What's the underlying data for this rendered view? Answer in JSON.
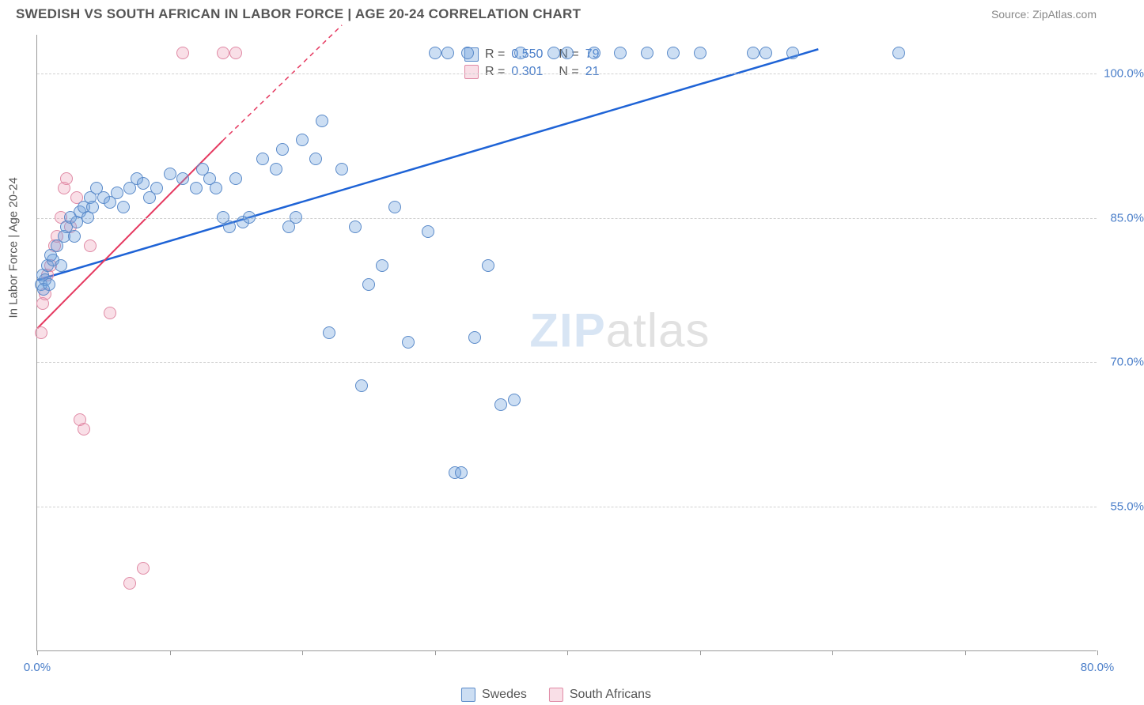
{
  "header": {
    "title": "SWEDISH VS SOUTH AFRICAN IN LABOR FORCE | AGE 20-24 CORRELATION CHART",
    "source": "Source: ZipAtlas.com"
  },
  "chart": {
    "type": "scatter",
    "y_axis_title": "In Labor Force | Age 20-24",
    "xlim": [
      0,
      80
    ],
    "ylim": [
      40,
      104
    ],
    "x_ticks": [
      0,
      10,
      20,
      30,
      40,
      50,
      60,
      70,
      80
    ],
    "x_tick_labels": {
      "0": "0.0%",
      "80": "80.0%"
    },
    "y_ticks": [
      55,
      70,
      85,
      100
    ],
    "y_tick_labels": {
      "55": "55.0%",
      "70": "70.0%",
      "85": "85.0%",
      "100": "100.0%"
    },
    "grid_color": "#d0d0d0",
    "background_color": "#ffffff",
    "axis_color": "#999999",
    "tick_label_color": "#4a7ec9",
    "series": {
      "swedes": {
        "label": "Swedes",
        "marker_fill": "rgba(110,160,220,0.35)",
        "marker_stroke": "#5a8ac9",
        "marker_size": 16,
        "trend_color": "#1e63d6",
        "trend_width": 2.5,
        "trend": {
          "x1": 0,
          "y1": 78.5,
          "x2": 59,
          "y2": 102.5
        },
        "R": "0.550",
        "N": "79",
        "points": [
          [
            0.3,
            78
          ],
          [
            0.4,
            79
          ],
          [
            0.6,
            78.5
          ],
          [
            0.8,
            80
          ],
          [
            0.5,
            77.5
          ],
          [
            0.9,
            78
          ],
          [
            1.2,
            80.5
          ],
          [
            1.0,
            81
          ],
          [
            1.5,
            82
          ],
          [
            1.8,
            80
          ],
          [
            2.0,
            83
          ],
          [
            2.2,
            84
          ],
          [
            2.5,
            85
          ],
          [
            2.8,
            83
          ],
          [
            3.0,
            84.5
          ],
          [
            3.2,
            85.5
          ],
          [
            3.5,
            86
          ],
          [
            3.8,
            85
          ],
          [
            4.0,
            87
          ],
          [
            4.2,
            86
          ],
          [
            4.5,
            88
          ],
          [
            5.0,
            87
          ],
          [
            5.5,
            86.5
          ],
          [
            6.0,
            87.5
          ],
          [
            6.5,
            86
          ],
          [
            7.0,
            88
          ],
          [
            7.5,
            89
          ],
          [
            8.0,
            88.5
          ],
          [
            8.5,
            87
          ],
          [
            9.0,
            88
          ],
          [
            10,
            89.5
          ],
          [
            11,
            89
          ],
          [
            12,
            88
          ],
          [
            12.5,
            90
          ],
          [
            13,
            89
          ],
          [
            13.5,
            88
          ],
          [
            14,
            85
          ],
          [
            14.5,
            84
          ],
          [
            15,
            89
          ],
          [
            15.5,
            84.5
          ],
          [
            16,
            85
          ],
          [
            17,
            91
          ],
          [
            18,
            90
          ],
          [
            18.5,
            92
          ],
          [
            19,
            84
          ],
          [
            19.5,
            85
          ],
          [
            20,
            93
          ],
          [
            21,
            91
          ],
          [
            21.5,
            95
          ],
          [
            22,
            73
          ],
          [
            23,
            90
          ],
          [
            24,
            84
          ],
          [
            24.5,
            67.5
          ],
          [
            25,
            78
          ],
          [
            26,
            80
          ],
          [
            27,
            86
          ],
          [
            28,
            72
          ],
          [
            29.5,
            83.5
          ],
          [
            30,
            102
          ],
          [
            31,
            102
          ],
          [
            31.5,
            58.5
          ],
          [
            32,
            58.5
          ],
          [
            32.5,
            102
          ],
          [
            33,
            72.5
          ],
          [
            34,
            80
          ],
          [
            35,
            65.5
          ],
          [
            36,
            66
          ],
          [
            36.5,
            102
          ],
          [
            39,
            102
          ],
          [
            40,
            102
          ],
          [
            42,
            102
          ],
          [
            44,
            102
          ],
          [
            46,
            102
          ],
          [
            48,
            102
          ],
          [
            50,
            102
          ],
          [
            54,
            102
          ],
          [
            55,
            102
          ],
          [
            57,
            102
          ],
          [
            65,
            102
          ]
        ]
      },
      "south_africans": {
        "label": "South Africans",
        "marker_fill": "rgba(235,150,175,0.30)",
        "marker_stroke": "#e08aa5",
        "marker_size": 16,
        "trend_color": "#e53960",
        "trend_width": 2,
        "trend_solid": {
          "x1": 0,
          "y1": 73.5,
          "x2": 14,
          "y2": 93
        },
        "trend_dash": {
          "x1": 14,
          "y1": 93,
          "x2": 23,
          "y2": 105
        },
        "R": "0.301",
        "N": "21",
        "points": [
          [
            0.3,
            73
          ],
          [
            0.4,
            76
          ],
          [
            0.6,
            77
          ],
          [
            0.8,
            79
          ],
          [
            1.0,
            80
          ],
          [
            1.3,
            82
          ],
          [
            1.5,
            83
          ],
          [
            1.8,
            85
          ],
          [
            2.0,
            88
          ],
          [
            2.2,
            89
          ],
          [
            2.5,
            84
          ],
          [
            3.0,
            87
          ],
          [
            3.2,
            64
          ],
          [
            3.5,
            63
          ],
          [
            4.0,
            82
          ],
          [
            5.5,
            75
          ],
          [
            7.0,
            47
          ],
          [
            8.0,
            48.5
          ],
          [
            11,
            102
          ],
          [
            14,
            102
          ],
          [
            15,
            102
          ]
        ]
      }
    },
    "legend_top": {
      "row1_r_label": "R =",
      "row1_n_label": "N =",
      "row2_r_label": "R =",
      "row2_n_label": "N ="
    },
    "watermark": {
      "part1": "ZIP",
      "part2": "atlas"
    }
  },
  "legend_bottom": {
    "items": [
      "Swedes",
      "South Africans"
    ]
  }
}
